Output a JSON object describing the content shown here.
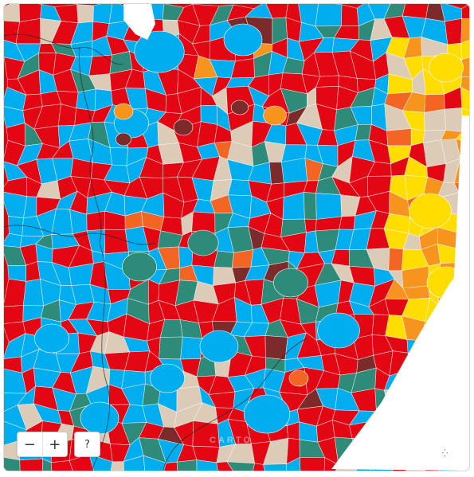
{
  "map": {
    "colors": {
      "red": "#e30613",
      "light_blue": "#00aeef",
      "teal": "#2e8b7a",
      "yellow": "#ffdd00",
      "orange": "#f7941d",
      "beige": "#dccbb7",
      "dark_red": "#7d2a2a",
      "dark_orange": "#f26522",
      "green": "#3aaa35",
      "olive": "#c8c820",
      "sea": "#ffffff"
    },
    "controls": {
      "zoom_out": "−",
      "zoom_in": "+",
      "help": "?"
    },
    "attribution": "CARTO",
    "islet_glyph": "⁛"
  }
}
